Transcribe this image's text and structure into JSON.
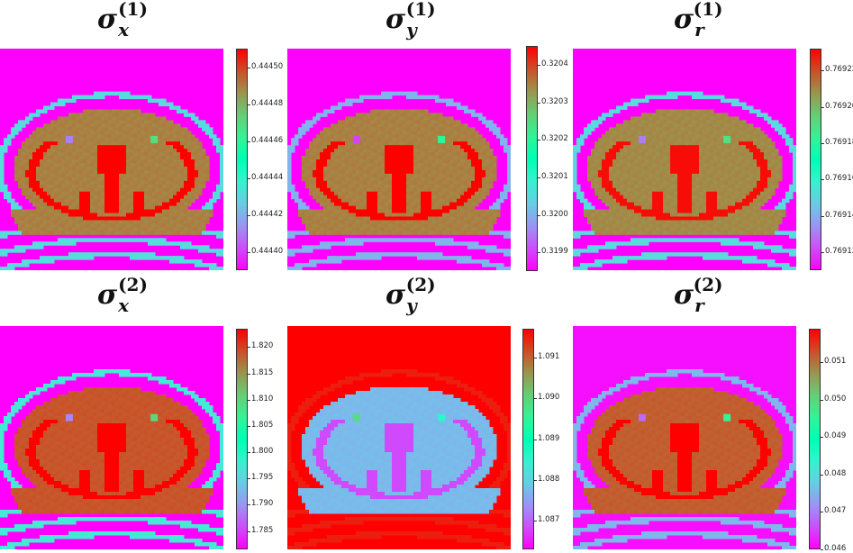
{
  "figure": {
    "title": "",
    "colormap": "rainbow"
  },
  "chart_data": [
    {
      "type": "heatmap",
      "id": "sx1",
      "title": "σx(1)",
      "symbol": "σ",
      "sub": "x",
      "sup": "(1)",
      "colorbar": {
        "min": 0.44439,
        "max": 0.44451,
        "ticks": [
          "0.44440",
          "0.44442",
          "0.44444",
          "0.44446",
          "0.44448",
          "0.44450"
        ],
        "tick_values": [
          0.4444,
          0.44442,
          0.44444,
          0.44446,
          0.44448,
          0.4445
        ]
      },
      "levels": {
        "background": 0.44439,
        "body": 0.44449,
        "bone": 0.44451,
        "ring": 0.44443,
        "spot_cold": 0.44441,
        "spot_warm": 0.44447
      }
    },
    {
      "type": "heatmap",
      "id": "sy1",
      "title": "σy(1)",
      "symbol": "σ",
      "sub": "y",
      "sup": "(1)",
      "colorbar": {
        "min": 0.31985,
        "max": 0.32045,
        "ticks": [
          "0.3199",
          "0.3200",
          "0.3201",
          "0.3202",
          "0.3203",
          "0.3204"
        ],
        "tick_values": [
          0.3199,
          0.32,
          0.3201,
          0.3202,
          0.3203,
          0.3204
        ]
      },
      "levels": {
        "background": 0.31985,
        "body": 0.32035,
        "bone": 0.32045,
        "ring": 0.32,
        "spot_cold": 0.3199,
        "spot_warm": 0.3202
      }
    },
    {
      "type": "heatmap",
      "id": "sr1",
      "title": "σr(1)",
      "symbol": "σ",
      "sub": "r",
      "sup": "(1)",
      "colorbar": {
        "min": 0.76911,
        "max": 0.769232,
        "ticks": [
          "0.76912",
          "0.76914",
          "0.76916",
          "0.76918",
          "0.76920",
          "0.76922"
        ],
        "tick_values": [
          0.76912,
          0.76914,
          0.76916,
          0.76918,
          0.7692,
          0.76922
        ]
      },
      "levels": {
        "background": 0.76911,
        "body": 0.76921,
        "bone": 0.76923,
        "ring": 0.76915,
        "spot_cold": 0.76913,
        "spot_warm": 0.76919
      }
    },
    {
      "type": "heatmap",
      "id": "sx2",
      "title": "σx(2)",
      "symbol": "σ",
      "sub": "x",
      "sup": "(2)",
      "colorbar": {
        "min": 1.7815,
        "max": 1.8235,
        "ticks": [
          "1.785",
          "1.790",
          "1.795",
          "1.800",
          "1.805",
          "1.810",
          "1.815",
          "1.820"
        ],
        "tick_values": [
          1.785,
          1.79,
          1.795,
          1.8,
          1.805,
          1.81,
          1.815,
          1.82
        ]
      },
      "levels": {
        "background": 1.7815,
        "body": 1.819,
        "bone": 1.8235,
        "ring": 1.797,
        "spot_cold": 1.789,
        "spot_warm": 1.81
      }
    },
    {
      "type": "heatmap",
      "id": "sy2",
      "title": "σy(2)",
      "symbol": "σ",
      "sub": "y",
      "sup": "(2)",
      "colorbar": {
        "min": 1.0863,
        "max": 1.0917,
        "ticks": [
          "1.087",
          "1.088",
          "1.089",
          "1.090",
          "1.091"
        ],
        "tick_values": [
          1.087,
          1.088,
          1.089,
          1.09,
          1.091
        ]
      },
      "levels": {
        "background": 1.0917,
        "body": 1.0877,
        "bone": 1.0868,
        "ring": 1.0915,
        "spot_cold": 1.0899,
        "spot_warm": 1.0885
      }
    },
    {
      "type": "heatmap",
      "id": "sr2",
      "title": "σr(2)",
      "symbol": "σ",
      "sub": "r",
      "sup": "(2)",
      "colorbar": {
        "min": 0.046,
        "max": 0.0519,
        "ticks": [
          "0.046",
          "0.047",
          "0.048",
          "0.049",
          "0.050",
          "0.051"
        ],
        "tick_values": [
          0.046,
          0.047,
          0.048,
          0.049,
          0.05,
          0.051
        ]
      },
      "levels": {
        "background": 0.0461,
        "body": 0.0512,
        "bone": 0.0519,
        "ring": 0.0475,
        "spot_cold": 0.0468,
        "spot_warm": 0.0495
      }
    }
  ]
}
